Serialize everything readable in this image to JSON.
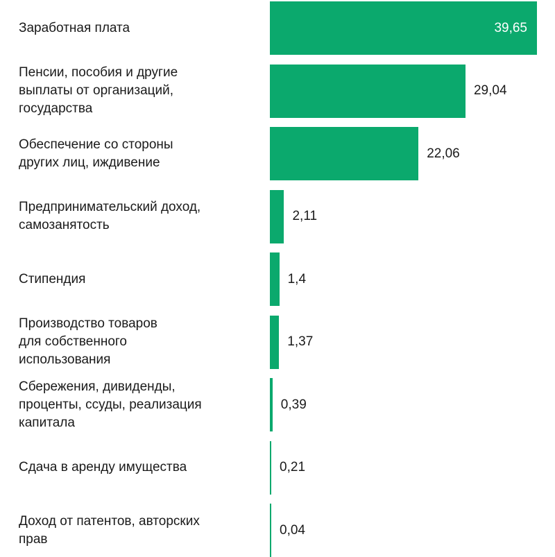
{
  "chart_data": {
    "type": "bar",
    "orientation": "horizontal",
    "title": "",
    "xlabel": "",
    "ylabel": "",
    "xlim": [
      0,
      39.65
    ],
    "grid": false,
    "bar_color": "#0ba96d",
    "categories": [
      "Заработная плата",
      "Пенсии, пособия и другие\nвыплаты от организаций,\nгосударства",
      "Обеспечение со стороны\nдругих лиц, иждивение",
      "Предпринимательский доход,\nсамозанятость",
      "Стипендия",
      "Производство товаров\nдля собственного\nиспользования",
      "Сбережения, дивиденды,\nпроценты, ссуды, реализация\nкапитала",
      "Сдача в аренду имущества",
      "Доход от патентов, авторских\nправ"
    ],
    "values": [
      39.65,
      29.04,
      22.06,
      2.11,
      1.4,
      1.37,
      0.39,
      0.21,
      0.04
    ],
    "value_labels": [
      "39,65",
      "29,04",
      "22,06",
      "2,11",
      "1,4",
      "1,37",
      "0,39",
      "0,21",
      "0,04"
    ]
  }
}
